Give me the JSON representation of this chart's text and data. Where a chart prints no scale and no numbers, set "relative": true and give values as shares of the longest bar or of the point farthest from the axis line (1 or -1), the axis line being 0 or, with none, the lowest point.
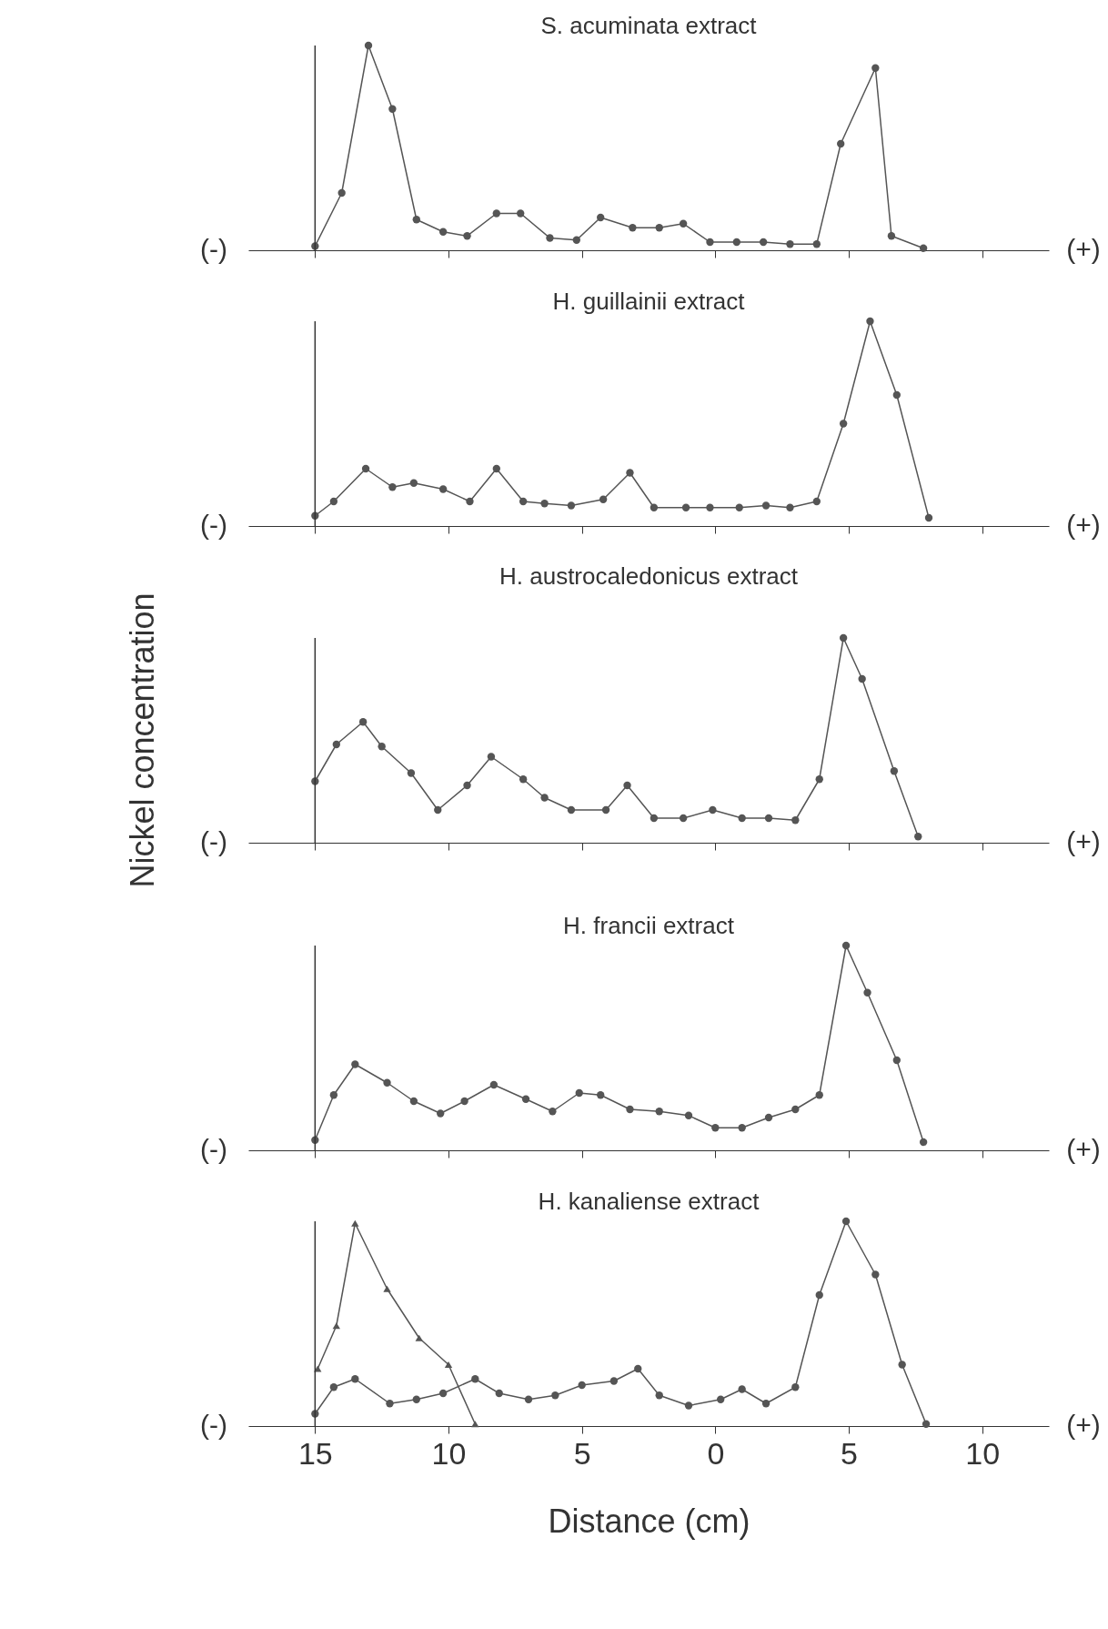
{
  "chart_data": [
    {
      "type": "line",
      "title": "S. acuminata extract",
      "relative": true,
      "marker": "circle",
      "grid": false,
      "tick_labels": false,
      "xlim": [
        -17.5,
        12.5
      ],
      "xticks": [
        {
          "value": -15,
          "label": null
        },
        {
          "value": -10,
          "label": null
        },
        {
          "value": -5,
          "label": null
        },
        {
          "value": 0,
          "label": null
        },
        {
          "value": 5,
          "label": null
        },
        {
          "value": 10,
          "label": null
        }
      ],
      "annotations": [
        "(-)",
        "(+)"
      ],
      "ref_lines": [
        {
          "axis": "x",
          "value": -15
        }
      ],
      "series": [
        {
          "color": "#555555",
          "x": [
            -15.0,
            -14.0,
            -13.0,
            -12.1,
            -11.2,
            -10.2,
            -9.3,
            -8.2,
            -7.3,
            -6.2,
            -5.2,
            -4.3,
            -3.1,
            -2.1,
            -1.2,
            -0.2,
            0.8,
            1.8,
            2.8,
            3.8,
            4.7,
            6.0,
            6.6,
            7.8
          ],
          "values": [
            0.02,
            0.28,
            1.0,
            0.69,
            0.15,
            0.09,
            0.07,
            0.18,
            0.18,
            0.06,
            0.05,
            0.16,
            0.11,
            0.11,
            0.13,
            0.04,
            0.04,
            0.04,
            0.03,
            0.03,
            0.52,
            0.89,
            0.07,
            0.01
          ]
        }
      ]
    },
    {
      "type": "line",
      "title": "H. guillainii extract",
      "relative": true,
      "marker": "circle",
      "grid": false,
      "tick_labels": false,
      "xlim": [
        -17.5,
        12.5
      ],
      "xticks": [
        {
          "value": -15,
          "label": null
        },
        {
          "value": -10,
          "label": null
        },
        {
          "value": -5,
          "label": null
        },
        {
          "value": 0,
          "label": null
        },
        {
          "value": 5,
          "label": null
        },
        {
          "value": 10,
          "label": null
        }
      ],
      "annotations": [
        "(-)",
        "(+)"
      ],
      "ref_lines": [
        {
          "axis": "x",
          "value": -15
        }
      ],
      "series": [
        {
          "color": "#555555",
          "x": [
            -15.0,
            -14.3,
            -13.1,
            -12.1,
            -11.3,
            -10.2,
            -9.2,
            -8.2,
            -7.2,
            -6.4,
            -5.4,
            -4.2,
            -3.2,
            -2.3,
            -1.1,
            -0.2,
            0.9,
            1.9,
            2.8,
            3.8,
            4.8,
            5.8,
            6.8,
            8.0
          ],
          "values": [
            0.05,
            0.12,
            0.28,
            0.19,
            0.21,
            0.18,
            0.12,
            0.28,
            0.12,
            0.11,
            0.1,
            0.13,
            0.26,
            0.09,
            0.09,
            0.09,
            0.09,
            0.1,
            0.09,
            0.12,
            0.5,
            1.0,
            0.64,
            0.04
          ]
        }
      ]
    },
    {
      "type": "line",
      "title": "H. austrocaledonicus extract",
      "ylabel": "Nickel concentration",
      "relative": true,
      "marker": "circle",
      "grid": false,
      "tick_labels": false,
      "xlim": [
        -17.5,
        12.5
      ],
      "xticks": [
        {
          "value": -15,
          "label": null
        },
        {
          "value": -10,
          "label": null
        },
        {
          "value": -5,
          "label": null
        },
        {
          "value": 0,
          "label": null
        },
        {
          "value": 5,
          "label": null
        },
        {
          "value": 10,
          "label": null
        }
      ],
      "annotations": [
        "(-)",
        "(+)"
      ],
      "ref_lines": [
        {
          "axis": "x",
          "value": -15
        }
      ],
      "series": [
        {
          "color": "#555555",
          "x": [
            -15.0,
            -14.2,
            -13.2,
            -12.5,
            -11.4,
            -10.4,
            -9.3,
            -8.4,
            -7.2,
            -6.4,
            -5.4,
            -4.1,
            -3.3,
            -2.3,
            -1.2,
            -0.1,
            1.0,
            2.0,
            3.0,
            3.9,
            4.8,
            5.5,
            6.7,
            7.6
          ],
          "values": [
            0.3,
            0.48,
            0.59,
            0.47,
            0.34,
            0.16,
            0.28,
            0.42,
            0.31,
            0.22,
            0.16,
            0.16,
            0.28,
            0.12,
            0.12,
            0.16,
            0.12,
            0.12,
            0.11,
            0.31,
            1.0,
            0.8,
            0.35,
            0.03
          ]
        }
      ]
    },
    {
      "type": "line",
      "title": "H. francii extract",
      "relative": true,
      "marker": "circle",
      "grid": false,
      "tick_labels": false,
      "xlim": [
        -17.5,
        12.5
      ],
      "xticks": [
        {
          "value": -15,
          "label": null
        },
        {
          "value": -10,
          "label": null
        },
        {
          "value": -5,
          "label": null
        },
        {
          "value": 0,
          "label": null
        },
        {
          "value": 5,
          "label": null
        },
        {
          "value": 10,
          "label": null
        }
      ],
      "annotations": [
        "(-)",
        "(+)"
      ],
      "ref_lines": [
        {
          "axis": "x",
          "value": -15
        }
      ],
      "series": [
        {
          "color": "#555555",
          "x": [
            -15.0,
            -14.3,
            -13.5,
            -12.3,
            -11.3,
            -10.3,
            -9.4,
            -8.3,
            -7.1,
            -6.1,
            -5.1,
            -4.3,
            -3.2,
            -2.1,
            -1.0,
            0.0,
            1.0,
            2.0,
            3.0,
            3.9,
            4.9,
            5.7,
            6.8,
            7.8
          ],
          "values": [
            0.05,
            0.27,
            0.42,
            0.33,
            0.24,
            0.18,
            0.24,
            0.32,
            0.25,
            0.19,
            0.28,
            0.27,
            0.2,
            0.19,
            0.17,
            0.11,
            0.11,
            0.16,
            0.2,
            0.27,
            1.0,
            0.77,
            0.44,
            0.04
          ]
        }
      ]
    },
    {
      "type": "line",
      "title": "H. kanaliense extract",
      "xlabel": "Distance (cm)",
      "relative": true,
      "marker": "circle",
      "grid": false,
      "tick_labels": "x",
      "xlim": [
        -17.5,
        12.5
      ],
      "xticks": [
        {
          "value": -15,
          "label": "15"
        },
        {
          "value": -10,
          "label": "10"
        },
        {
          "value": -5,
          "label": "5"
        },
        0,
        5,
        10
      ],
      "annotations": [
        "(-)",
        "(+)"
      ],
      "ref_lines": [
        {
          "axis": "x",
          "value": -15
        }
      ],
      "series": [
        {
          "color": "#555555",
          "x": [
            -15.0,
            -14.3,
            -13.5,
            -12.2,
            -11.2,
            -10.2,
            -9.0,
            -8.1,
            -7.0,
            -6.0,
            -5.0,
            -3.8,
            -2.9,
            -2.1,
            -1.0,
            0.2,
            1.0,
            1.9,
            3.0,
            3.9,
            4.9,
            6.0,
            7.0,
            7.9
          ],
          "values": [
            0.06,
            0.19,
            0.23,
            0.11,
            0.13,
            0.16,
            0.23,
            0.16,
            0.13,
            0.15,
            0.2,
            0.22,
            0.28,
            0.15,
            0.1,
            0.13,
            0.18,
            0.11,
            0.19,
            0.64,
            1.0,
            0.74,
            0.3,
            0.01
          ]
        },
        {
          "color": "#555555",
          "marker": "triangle",
          "x": [
            -14.9,
            -14.2,
            -13.5,
            -12.3,
            -11.1,
            -10.0,
            -9.0
          ],
          "values": [
            0.28,
            0.49,
            0.99,
            0.67,
            0.43,
            0.3,
            0.01
          ]
        }
      ]
    }
  ]
}
